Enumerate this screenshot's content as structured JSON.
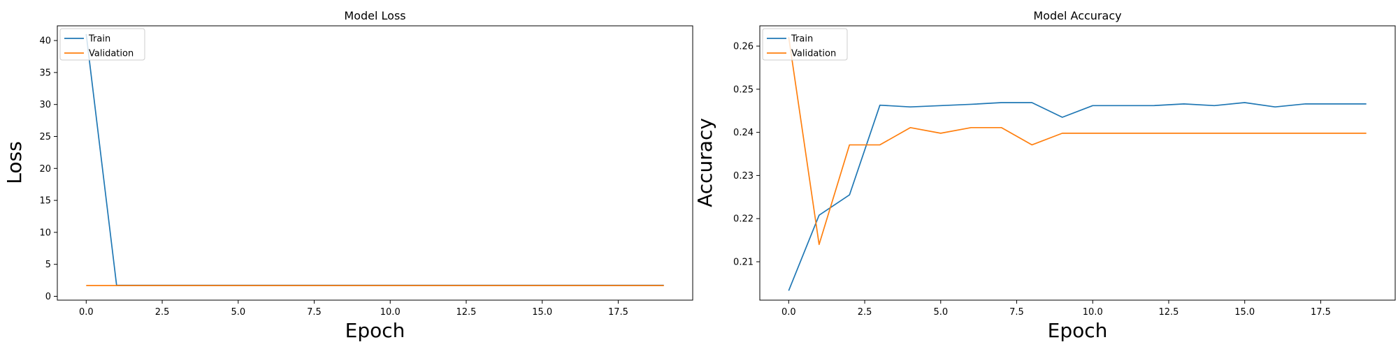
{
  "chart_data": [
    {
      "type": "line",
      "title": "Model Loss",
      "xlabel": "Epoch",
      "ylabel": "Loss",
      "xlim": [
        -0.95,
        19.95
      ],
      "ylim": [
        -0.6,
        42.3
      ],
      "xticks": [
        0.0,
        2.5,
        5.0,
        7.5,
        10.0,
        12.5,
        15.0,
        17.5
      ],
      "xtick_labels": [
        "0.0",
        "2.5",
        "5.0",
        "7.5",
        "10.0",
        "12.5",
        "15.0",
        "17.5"
      ],
      "yticks": [
        0,
        5,
        10,
        15,
        20,
        25,
        30,
        35,
        40
      ],
      "ytick_labels": [
        "0",
        "5",
        "10",
        "15",
        "20",
        "25",
        "30",
        "35",
        "40"
      ],
      "x": [
        0,
        1,
        2,
        3,
        4,
        5,
        6,
        7,
        8,
        9,
        10,
        11,
        12,
        13,
        14,
        15,
        16,
        17,
        18,
        19
      ],
      "series": [
        {
          "name": "Train",
          "color": "#1f77b4",
          "values": [
            41.0,
            1.72,
            1.72,
            1.72,
            1.72,
            1.72,
            1.72,
            1.72,
            1.72,
            1.72,
            1.72,
            1.72,
            1.72,
            1.72,
            1.72,
            1.72,
            1.72,
            1.72,
            1.72,
            1.72
          ]
        },
        {
          "name": "Validation",
          "color": "#ff7f0e",
          "values": [
            1.68,
            1.68,
            1.68,
            1.68,
            1.68,
            1.68,
            1.68,
            1.68,
            1.68,
            1.68,
            1.68,
            1.68,
            1.68,
            1.68,
            1.68,
            1.68,
            1.68,
            1.68,
            1.68,
            1.68
          ]
        }
      ],
      "legend": "upper left",
      "grid": false
    },
    {
      "type": "line",
      "title": "Model Accuracy",
      "xlabel": "Epoch",
      "ylabel": "Accuracy",
      "xlim": [
        -0.95,
        19.95
      ],
      "ylim": [
        0.2011,
        0.2647
      ],
      "xticks": [
        0.0,
        2.5,
        5.0,
        7.5,
        10.0,
        12.5,
        15.0,
        17.5
      ],
      "xtick_labels": [
        "0.0",
        "2.5",
        "5.0",
        "7.5",
        "10.0",
        "12.5",
        "15.0",
        "17.5"
      ],
      "yticks": [
        0.21,
        0.22,
        0.23,
        0.24,
        0.25,
        0.26
      ],
      "ytick_labels": [
        "0.21",
        "0.22",
        "0.23",
        "0.24",
        "0.25",
        "0.26"
      ],
      "x": [
        0,
        1,
        2,
        3,
        4,
        5,
        6,
        7,
        8,
        9,
        10,
        11,
        12,
        13,
        14,
        15,
        16,
        17,
        18,
        19
      ],
      "series": [
        {
          "name": "Train",
          "color": "#1f77b4",
          "values": [
            0.2033,
            0.2208,
            0.2255,
            0.2463,
            0.2459,
            0.2462,
            0.2465,
            0.2469,
            0.2469,
            0.2435,
            0.2462,
            0.2462,
            0.2462,
            0.2466,
            0.2462,
            0.2469,
            0.2459,
            0.2466,
            0.2466,
            0.2466
          ]
        },
        {
          "name": "Validation",
          "color": "#ff7f0e",
          "values": [
            0.2621,
            0.214,
            0.2371,
            0.2371,
            0.2411,
            0.2398,
            0.2411,
            0.2411,
            0.2371,
            0.2398,
            0.2398,
            0.2398,
            0.2398,
            0.2398,
            0.2398,
            0.2398,
            0.2398,
            0.2398,
            0.2398,
            0.2398
          ]
        }
      ],
      "legend": "upper left",
      "grid": false
    }
  ]
}
